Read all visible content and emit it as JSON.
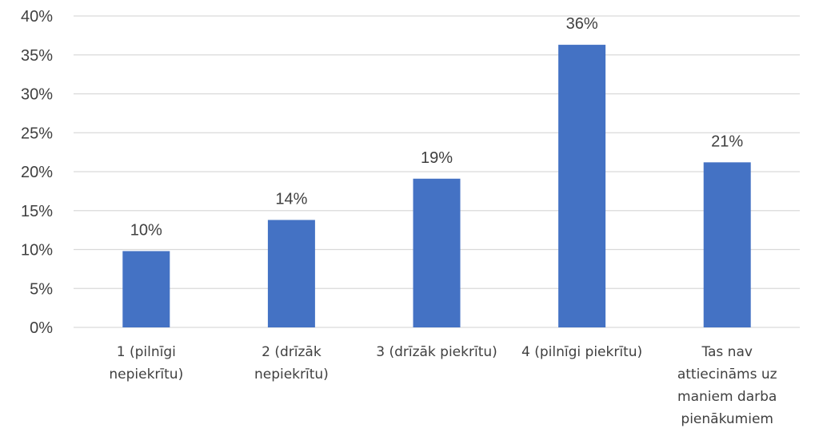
{
  "chart_data": {
    "type": "bar",
    "categories": [
      "1 (pilnīgi nepiekrītu)",
      "2 (drīzāk nepiekrītu)",
      "3 (drīzāk piekrītu)",
      "4 (pilnīgi piekrītu)",
      "Tas nav attiecināms uz maniem darba pienākumiem"
    ],
    "category_label_lines": [
      [
        "1 (pilnīgi",
        "nepiekrītu)"
      ],
      [
        "2 (drīzāk",
        "nepiekrītu)"
      ],
      [
        "3 (drīzāk piekrītu)"
      ],
      [
        "4 (pilnīgi piekrītu)"
      ],
      [
        "Tas nav",
        "attiecināms uz",
        "maniem darba",
        "pienākumiem"
      ]
    ],
    "values": [
      9.8,
      13.8,
      19.1,
      36.3,
      21.2
    ],
    "data_labels": [
      "10%",
      "14%",
      "19%",
      "36%",
      "21%"
    ],
    "title": "",
    "xlabel": "",
    "ylabel": "",
    "ylim": [
      0,
      40
    ],
    "yticks": [
      0,
      5,
      10,
      15,
      20,
      25,
      30,
      35,
      40
    ],
    "ytick_labels": [
      "0%",
      "5%",
      "10%",
      "15%",
      "20%",
      "25%",
      "30%",
      "35%",
      "40%"
    ],
    "grid": true,
    "legend": "none",
    "bar_color": "#4472c4",
    "grid_color": "#d9d9d9",
    "text_color": "#404040"
  }
}
